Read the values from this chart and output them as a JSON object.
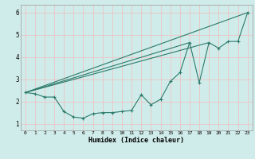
{
  "xlabel": "Humidex (Indice chaleur)",
  "background_color": "#d0ecea",
  "grid_color": "#e8c8c8",
  "line_color": "#2a7a6a",
  "xlim": [
    -0.5,
    23.5
  ],
  "ylim": [
    0.7,
    6.35
  ],
  "xticks": [
    0,
    1,
    2,
    3,
    4,
    5,
    6,
    7,
    8,
    9,
    10,
    11,
    12,
    13,
    14,
    15,
    16,
    17,
    18,
    19,
    20,
    21,
    22,
    23
  ],
  "yticks": [
    1,
    2,
    3,
    4,
    5,
    6
  ],
  "main_x": [
    0,
    1,
    2,
    3,
    4,
    5,
    6,
    7,
    8,
    9,
    10,
    11,
    12,
    13,
    14,
    15,
    16,
    17,
    18,
    19,
    20,
    21,
    22,
    23
  ],
  "main_y": [
    2.4,
    2.35,
    2.2,
    2.2,
    1.55,
    1.3,
    1.25,
    1.45,
    1.5,
    1.5,
    1.55,
    1.6,
    2.3,
    1.85,
    2.1,
    2.9,
    3.3,
    4.65,
    2.85,
    4.65,
    4.4,
    4.7,
    4.7,
    6.0
  ],
  "line1_x": [
    0,
    23
  ],
  "line1_y": [
    2.4,
    6.0
  ],
  "line2_x": [
    0,
    17
  ],
  "line2_y": [
    2.4,
    4.65
  ],
  "line3_x": [
    0,
    19
  ],
  "line3_y": [
    2.4,
    4.65
  ]
}
